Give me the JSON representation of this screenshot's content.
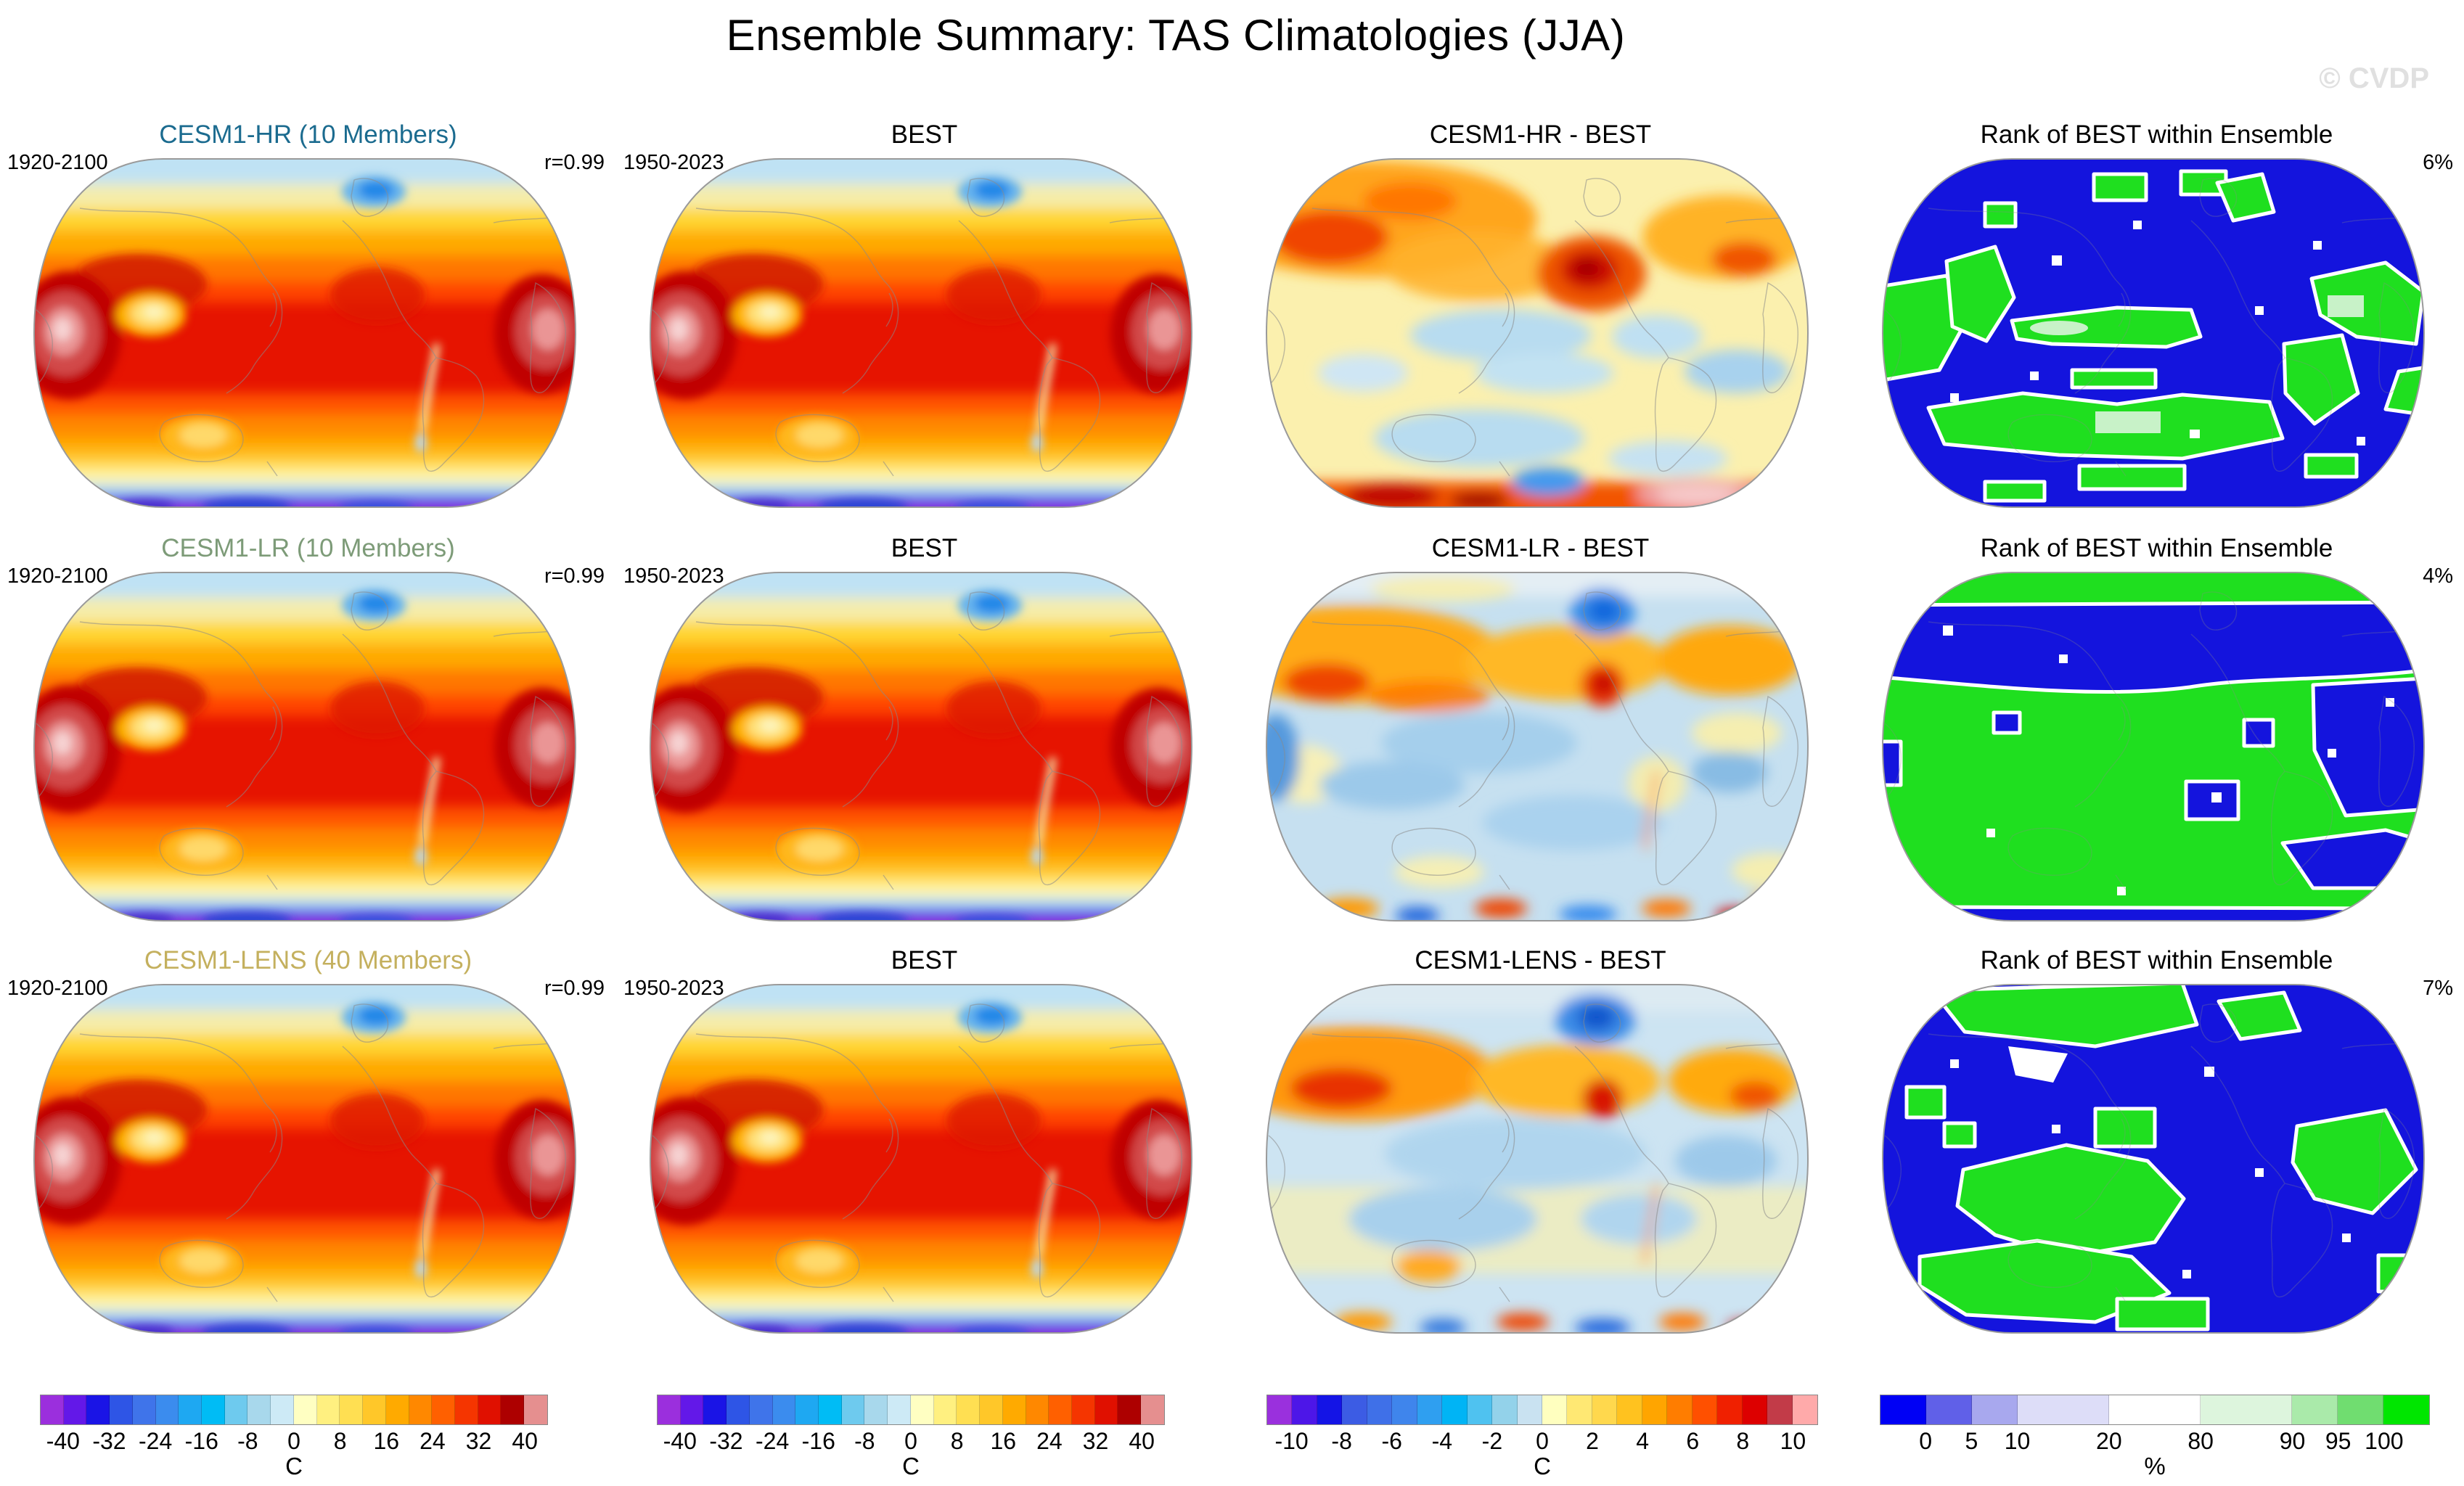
{
  "figure": {
    "title": "Ensemble Summary: TAS Climatologies (JJA)",
    "watermark": "© CVDP"
  },
  "chart_data": {
    "type": "heatmap",
    "title": "Ensemble Summary: TAS Climatologies (JJA)",
    "layout": "3 rows x 4 columns of global map panels with shared colorbars",
    "projection": "global oval (Winkel-style), Pacific-centered",
    "rows": [
      {
        "model_title": "CESM1-HR (10 Members)",
        "model_title_color": "#1b6b8f",
        "model_period": "1920-2100",
        "model_stat": "r=0.99",
        "obs_title": "BEST",
        "obs_period": "1950-2023",
        "diff_title": "CESM1-HR - BEST",
        "rank_title": "Rank of BEST within Ensemble",
        "rank_percent": "6%"
      },
      {
        "model_title": "CESM1-LR (10 Members)",
        "model_title_color": "#7d9b78",
        "model_period": "1920-2100",
        "model_stat": "r=0.99",
        "obs_title": "BEST",
        "obs_period": "1950-2023",
        "diff_title": "CESM1-LR - BEST",
        "rank_title": "Rank of BEST within Ensemble",
        "rank_percent": "4%"
      },
      {
        "model_title": "CESM1-LENS (40 Members)",
        "model_title_color": "#c4b05e",
        "model_period": "1920-2100",
        "model_stat": "r=0.99",
        "obs_title": "BEST",
        "obs_period": "1950-2023",
        "diff_title": "CESM1-LENS - BEST",
        "rank_title": "Rank of BEST within Ensemble",
        "rank_percent": "7%"
      }
    ],
    "colorbars": {
      "temp": {
        "unit": "C",
        "range": [
          -40,
          40
        ],
        "ticks": [
          {
            "label": "-40",
            "pos": 0.0455
          },
          {
            "label": "-32",
            "pos": 0.1364
          },
          {
            "label": "-24",
            "pos": 0.2273
          },
          {
            "label": "-16",
            "pos": 0.3182
          },
          {
            "label": "-8",
            "pos": 0.4091
          },
          {
            "label": "0",
            "pos": 0.5
          },
          {
            "label": "8",
            "pos": 0.5909
          },
          {
            "label": "16",
            "pos": 0.6818
          },
          {
            "label": "24",
            "pos": 0.7727
          },
          {
            "label": "32",
            "pos": 0.8636
          },
          {
            "label": "40",
            "pos": 0.9545
          }
        ],
        "colors": [
          "#9b2fdd",
          "#6318e8",
          "#1a14e6",
          "#2e55e6",
          "#3f74ea",
          "#3b8cee",
          "#1ea8f2",
          "#00bcf5",
          "#6ecaee",
          "#a8d8ec",
          "#cdeaf6",
          "#ffffc2",
          "#fff080",
          "#ffdf52",
          "#ffc729",
          "#ffaa00",
          "#ff8800",
          "#ff6000",
          "#f53500",
          "#e01000",
          "#ad0000",
          "#e58f8f"
        ]
      },
      "diff": {
        "unit": "C",
        "range": [
          -10,
          10
        ],
        "ticks": [
          {
            "label": "-10",
            "pos": 0.0455
          },
          {
            "label": "-8",
            "pos": 0.1364
          },
          {
            "label": "-6",
            "pos": 0.2273
          },
          {
            "label": "-4",
            "pos": 0.3182
          },
          {
            "label": "-2",
            "pos": 0.4091
          },
          {
            "label": "0",
            "pos": 0.5
          },
          {
            "label": "2",
            "pos": 0.5909
          },
          {
            "label": "4",
            "pos": 0.6818
          },
          {
            "label": "6",
            "pos": 0.7727
          },
          {
            "label": "8",
            "pos": 0.8636
          },
          {
            "label": "10",
            "pos": 0.9545
          }
        ],
        "colors": [
          "#9a30dd",
          "#4d16e8",
          "#1414e6",
          "#3c5ce4",
          "#3f70e8",
          "#3f85ec",
          "#2f9ff0",
          "#00b4f5",
          "#4fc2f0",
          "#93d2ea",
          "#c9e2f1",
          "#ffffbf",
          "#ffe873",
          "#ffd84d",
          "#ffc21f",
          "#ffa500",
          "#ff7d00",
          "#ff5000",
          "#f02000",
          "#dd0000",
          "#c23b48",
          "#ffaaaa"
        ]
      },
      "rank": {
        "unit": "%",
        "range": [
          0,
          100
        ],
        "ticks": [
          {
            "label": "0",
            "pos": 0.0833
          },
          {
            "label": "5",
            "pos": 0.1667
          },
          {
            "label": "10",
            "pos": 0.25
          },
          {
            "label": "20",
            "pos": 0.4167
          },
          {
            "label": "80",
            "pos": 0.5833
          },
          {
            "label": "90",
            "pos": 0.75
          },
          {
            "label": "95",
            "pos": 0.8333
          },
          {
            "label": "100",
            "pos": 0.9167
          }
        ],
        "colors": [
          "#0000f5",
          "#6060e8",
          "#a8a8ee",
          "#ddddf8",
          "#ffffff",
          "#ddf5dd",
          "#aaeaaa",
          "#70dd70",
          "#00e600"
        ],
        "widths": [
          1,
          1,
          1,
          2,
          2,
          2,
          1,
          1,
          1
        ]
      },
      "map_colors": {
        "rank_blue": "#1414dd",
        "rank_green": "#1fdf1f",
        "hot_red": "#e61400",
        "antarctic_purple": "#8822dd"
      }
    }
  }
}
